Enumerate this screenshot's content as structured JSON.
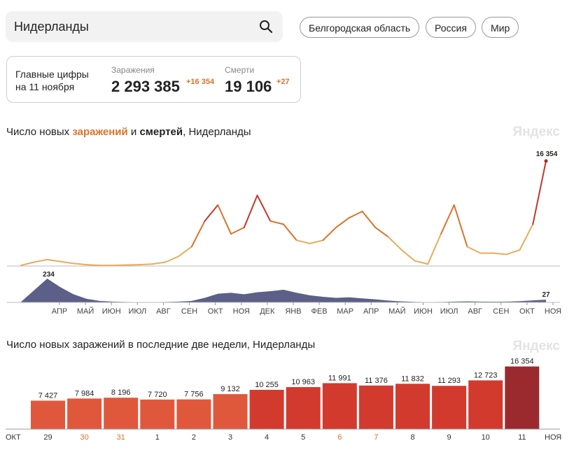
{
  "search": {
    "query": "Нидерланды"
  },
  "regions": [
    "Белгородская область",
    "Россия",
    "Мир"
  ],
  "stats": {
    "title_line1": "Главные цифры",
    "title_line2": "на 11 ноября",
    "infections_label": "Заражения",
    "infections_value": "2 293 385",
    "infections_delta": "+16 354",
    "deaths_label": "Смерти",
    "deaths_value": "19 106",
    "deaths_delta": "+27"
  },
  "chart1": {
    "heading_part1": "Число новых ",
    "heading_infections": "заражений",
    "heading_part2": " и ",
    "heading_deaths": "смертей",
    "heading_part3": ", Нидерланды",
    "brand": "Яндекс"
  },
  "chart2": {
    "heading": "Число новых заражений в последние две недели, Нидерланды",
    "brand": "Яндекс"
  },
  "colors": {
    "orange": "#d9732b",
    "deaths": "#4a4e7a",
    "bar_dark": "#9b2a2f"
  },
  "chart_data": [
    {
      "type": "area",
      "series": [
        {
          "name": "заражения",
          "x": [
            "мар",
            "мар",
            "апр",
            "апр",
            "май",
            "май",
            "июн",
            "июн",
            "июл",
            "июл",
            "авг",
            "авг",
            "сен",
            "сен",
            "окт",
            "окт",
            "ноя",
            "ноя",
            "дек",
            "дек",
            "янв",
            "янв",
            "фев",
            "фев",
            "мар",
            "мар",
            "апр",
            "апр",
            "май",
            "май",
            "июн",
            "июн",
            "июл",
            "июл",
            "авг",
            "авг",
            "сен",
            "сен",
            "окт",
            "окт",
            "ноя"
          ],
          "values": [
            100,
            600,
            1000,
            700,
            400,
            200,
            100,
            100,
            150,
            200,
            300,
            600,
            1500,
            3000,
            7000,
            9500,
            5000,
            6000,
            11000,
            7000,
            6500,
            4000,
            3500,
            4000,
            6000,
            7500,
            8500,
            6000,
            4500,
            2500,
            800,
            300,
            5000,
            9500,
            3000,
            2000,
            2000,
            1800,
            2500,
            6500,
            16354
          ]
        },
        {
          "name": "смерти",
          "x": [
            "мар",
            "мар",
            "апр",
            "апр",
            "май",
            "май",
            "июн",
            "июн",
            "июл",
            "июл",
            "авг",
            "авг",
            "сен",
            "сен",
            "окт",
            "окт",
            "ноя",
            "ноя",
            "дек",
            "дек",
            "янв",
            "янв",
            "фев",
            "фев",
            "мар",
            "мар",
            "апр",
            "апр",
            "май",
            "май",
            "июн",
            "июн",
            "июл",
            "июл",
            "авг",
            "авг",
            "сен",
            "сен",
            "окт",
            "окт",
            "ноя"
          ],
          "values": [
            5,
            120,
            234,
            150,
            80,
            35,
            15,
            8,
            4,
            3,
            3,
            4,
            8,
            15,
            45,
            85,
            95,
            80,
            100,
            110,
            125,
            95,
            70,
            55,
            45,
            50,
            40,
            30,
            18,
            10,
            5,
            3,
            4,
            8,
            10,
            8,
            7,
            8,
            12,
            20,
            27
          ]
        }
      ],
      "annotations": {
        "max_infections": "16 354",
        "max_deaths": "234",
        "last_deaths": "27"
      },
      "x_tick_labels": [
        "АПР",
        "МАЙ",
        "ИЮН",
        "ИЮЛ",
        "АВГ",
        "СЕН",
        "ОКТ",
        "НОЯ",
        "ДЕК",
        "ЯНВ",
        "ФЕВ",
        "МАР",
        "АПР",
        "МАЙ",
        "ИЮН",
        "ИЮЛ",
        "АВГ",
        "СЕН",
        "ОКТ",
        "НОЯ"
      ]
    },
    {
      "type": "bar",
      "title": "Число новых заражений в последние две недели, Нидерланды",
      "categories": [
        "29",
        "30",
        "31",
        "1",
        "2",
        "3",
        "4",
        "5",
        "6",
        "7",
        "8",
        "9",
        "10",
        "11"
      ],
      "values": [
        7427,
        7984,
        8196,
        7720,
        7756,
        9132,
        10255,
        10963,
        11991,
        11376,
        11832,
        11293,
        12723,
        16354
      ],
      "value_labels": [
        "7 427",
        "7 984",
        "8 196",
        "7 720",
        "7 756",
        "9 132",
        "10 255",
        "10 963",
        "11 991",
        "11 376",
        "11 832",
        "11 293",
        "12 723",
        "16 354"
      ],
      "weekend_categories": [
        "30",
        "31",
        "6",
        "7"
      ],
      "month_labels": {
        "start": "ОКТ",
        "end": "НОЯ"
      },
      "ylim": [
        0,
        17000
      ]
    }
  ]
}
